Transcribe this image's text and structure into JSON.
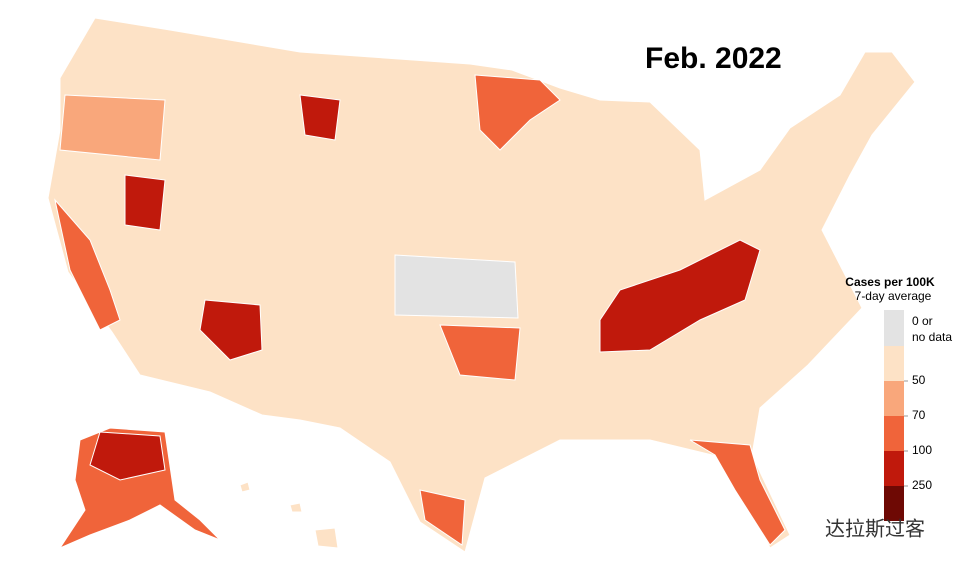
{
  "title": "Feb. 2022",
  "legend": {
    "title": "Cases per 100K",
    "subtitle": "7-day average",
    "no_data": {
      "lines": [
        "0 or",
        "no data"
      ],
      "color": "#e3e3e3"
    },
    "colors": [
      "#fde2c6",
      "#f9a77b",
      "#f0643a",
      "#c0190c",
      "#6e0904"
    ],
    "breaks": [
      "50",
      "70",
      "100",
      "250"
    ]
  },
  "watermark": "达拉斯过客"
}
